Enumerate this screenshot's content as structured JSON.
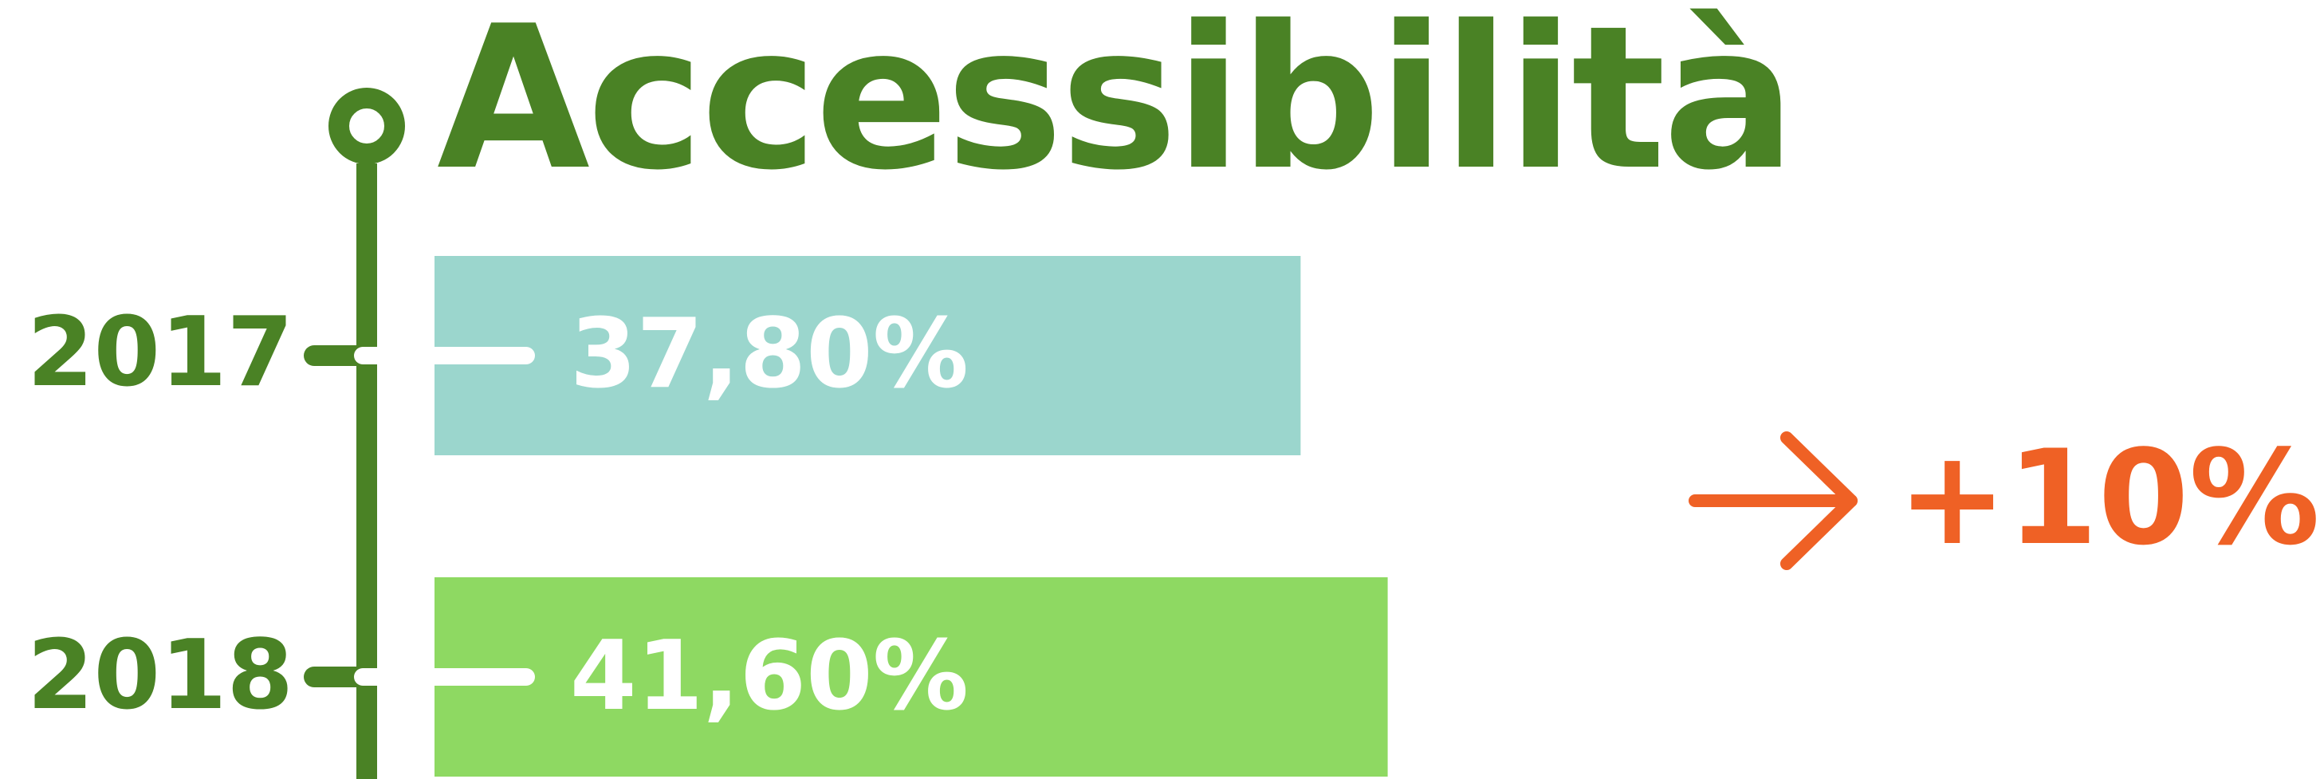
{
  "colors": {
    "timeline": "#4a8225",
    "bar_2017": "#9bd6cd",
    "bar_2018": "#8ed962",
    "bar_text": "#ffffff",
    "delta": "#ef6125"
  },
  "chart_data": {
    "type": "bar",
    "orientation": "horizontal",
    "title": "Accessibilità",
    "categories": [
      "2017",
      "2018"
    ],
    "values": [
      37.8,
      41.6
    ],
    "value_labels": [
      "37,80%",
      "41,60%"
    ],
    "xlim": [
      0,
      50
    ],
    "grid": false,
    "legend": "none",
    "annotation": "+10%"
  }
}
